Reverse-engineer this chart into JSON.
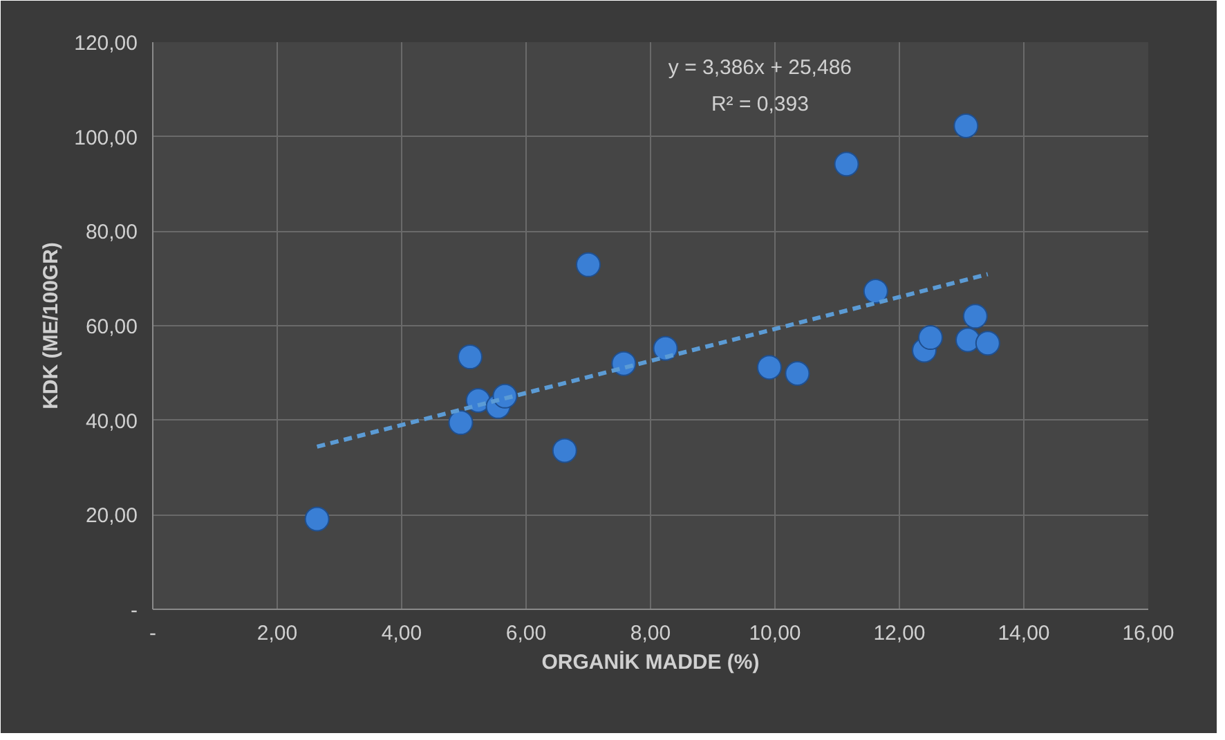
{
  "chart_data": {
    "type": "scatter",
    "xlabel": "ORGANİK MADDE (%)",
    "ylabel": "KDK (ME/100GR)",
    "annotations": [
      "y = 3,386x + 25,486",
      "R² = 0,393"
    ],
    "series": [
      {
        "color": "#3a7fd5",
        "marker": "circle",
        "x": [
          2.64,
          4.95,
          5.1,
          5.23,
          5.55,
          5.66,
          6.62,
          7.0,
          7.57,
          8.24,
          9.91,
          10.36,
          11.15,
          11.62,
          12.4,
          12.5,
          13.07,
          13.1,
          13.22,
          13.42
        ],
        "values": [
          19.1,
          39.5,
          53.4,
          44.2,
          42.9,
          45.1,
          33.6,
          72.9,
          52.0,
          55.2,
          51.2,
          49.9,
          94.2,
          67.3,
          54.8,
          57.5,
          102.3,
          57.0,
          62.0,
          56.3
        ]
      },
      {
        "type": "line",
        "color": "#5b9bd5",
        "line_style": "dashed",
        "x": [
          2.64,
          13.42
        ],
        "values": [
          34.4,
          70.9
        ]
      }
    ],
    "xlim": [
      0,
      16
    ],
    "ylim": [
      0,
      120
    ],
    "xticks": [
      {
        "value": 0,
        "label": "-"
      },
      {
        "value": 2,
        "label": "2,00"
      },
      {
        "value": 4,
        "label": "4,00"
      },
      {
        "value": 6,
        "label": "6,00"
      },
      {
        "value": 8,
        "label": "8,00"
      },
      {
        "value": 10,
        "label": "10,00"
      },
      {
        "value": 12,
        "label": "12,00"
      },
      {
        "value": 14,
        "label": "14,00"
      },
      {
        "value": 16,
        "label": "16,00"
      }
    ],
    "yticks": [
      {
        "value": 0,
        "label": "-"
      },
      {
        "value": 20,
        "label": "20,00"
      },
      {
        "value": 40,
        "label": "40,00"
      },
      {
        "value": 60,
        "label": "60,00"
      },
      {
        "value": 80,
        "label": "80,00"
      },
      {
        "value": 100,
        "label": "100,00"
      },
      {
        "value": 120,
        "label": "120,00"
      }
    ],
    "grid": true
  }
}
